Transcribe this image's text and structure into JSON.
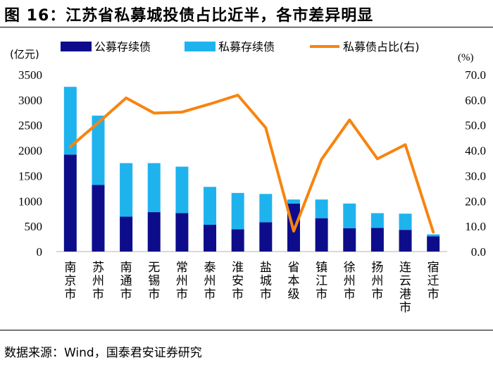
{
  "figure": {
    "title": "图 16：江苏省私募城投债占比近半，各市差异明显",
    "source": "数据来源：Wind，国泰君安证券研究"
  },
  "colors": {
    "public": "#0d0d8c",
    "private": "#1fb3ee",
    "ratio": "#f7840f"
  },
  "chart_data": {
    "type": "bar",
    "stacked": true,
    "categories": [
      "南京市",
      "苏州市",
      "南通市",
      "无锡市",
      "常州市",
      "泰州市",
      "淮安市",
      "盐城市",
      "省本级",
      "镇江市",
      "徐州市",
      "扬州市",
      "连云港市",
      "宿迁市"
    ],
    "series": [
      {
        "name": "公募存续债",
        "type": "bar",
        "axis": "left",
        "values": [
          1920,
          1320,
          690,
          780,
          760,
          530,
          440,
          580,
          950,
          660,
          460,
          470,
          430,
          300
        ]
      },
      {
        "name": "私募存续债",
        "type": "bar",
        "axis": "left",
        "values": [
          1340,
          1370,
          1060,
          970,
          920,
          750,
          720,
          560,
          80,
          370,
          490,
          290,
          320,
          40
        ]
      },
      {
        "name": "私募债占比(右)",
        "type": "line",
        "axis": "right",
        "values": [
          41.5,
          51.0,
          60.8,
          54.8,
          55.2,
          58.4,
          61.9,
          49.0,
          8.1,
          36.5,
          52.1,
          36.7,
          42.3,
          7.7
        ]
      }
    ],
    "y_left": {
      "label": "(亿元)",
      "range": [
        0,
        3500
      ],
      "ticks": [
        "0",
        "500",
        "1000",
        "1500",
        "2000",
        "2500",
        "3000",
        "3500"
      ]
    },
    "y_right": {
      "label": "(%)",
      "range": [
        0,
        70
      ],
      "ticks": [
        "0.0",
        "10.0",
        "20.0",
        "30.0",
        "40.0",
        "50.0",
        "60.0",
        "70.0"
      ]
    },
    "legend_position": "top",
    "grid": false
  }
}
